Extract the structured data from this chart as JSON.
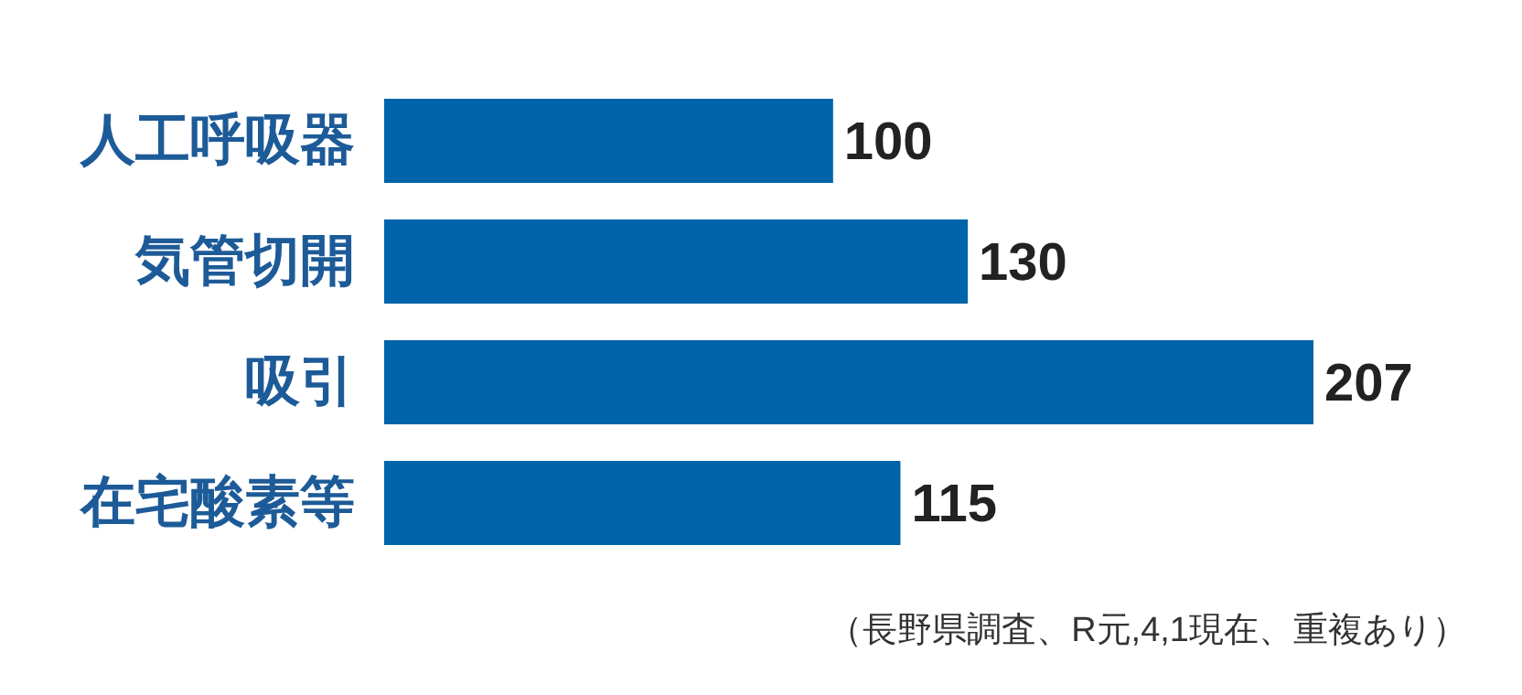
{
  "chart_data": {
    "type": "bar",
    "orientation": "horizontal",
    "categories": [
      "人工呼吸器",
      "気管切開",
      "吸引",
      "在宅酸素等"
    ],
    "values": [
      100,
      130,
      207,
      115
    ],
    "color": "#0064aa",
    "data_labels": true,
    "annotations": [
      "（長野県調査、R元,4,1現在、重複あり）"
    ]
  }
}
